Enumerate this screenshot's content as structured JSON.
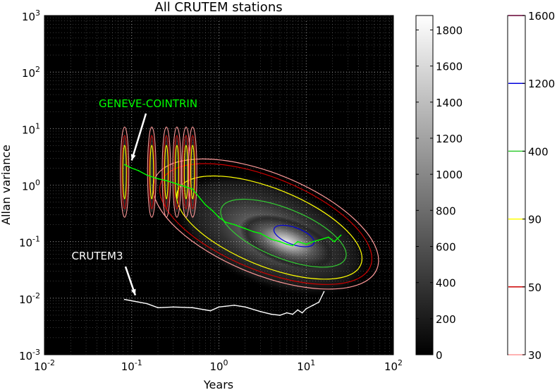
{
  "chart_data": {
    "type": "heatmap",
    "title": "All CRUTEM stations",
    "xlabel": "Years",
    "ylabel": "Allan variance",
    "xscale": "log",
    "yscale": "log",
    "xlim": [
      0.01,
      100
    ],
    "ylim": [
      0.001,
      1000
    ],
    "grid": true,
    "x_ticks": [
      {
        "base": "10",
        "exp": "-2",
        "value": 0.01
      },
      {
        "base": "10",
        "exp": "-1",
        "value": 0.1
      },
      {
        "base": "10",
        "exp": "0",
        "value": 1
      },
      {
        "base": "10",
        "exp": "1",
        "value": 10
      },
      {
        "base": "10",
        "exp": "2",
        "value": 100
      }
    ],
    "y_ticks": [
      {
        "base": "10",
        "exp": "-3",
        "value": 0.001
      },
      {
        "base": "10",
        "exp": "-2",
        "value": 0.01
      },
      {
        "base": "10",
        "exp": "-1",
        "value": 0.1
      },
      {
        "base": "10",
        "exp": "0",
        "value": 1
      },
      {
        "base": "10",
        "exp": "1",
        "value": 10
      },
      {
        "base": "10",
        "exp": "2",
        "value": 100
      },
      {
        "base": "10",
        "exp": "3",
        "value": 1000
      }
    ],
    "density_colorbar": {
      "colormap": "gray",
      "range": [
        0,
        1880
      ],
      "tick_labels": [
        "0",
        "200",
        "400",
        "600",
        "800",
        "1000",
        "1200",
        "1400",
        "1600",
        "1800"
      ]
    },
    "contour_colorbar": {
      "levels": [
        {
          "label": "30",
          "color": "#ff9999"
        },
        {
          "label": "50",
          "color": "#cc0000"
        },
        {
          "label": "90",
          "color": "#ffff00"
        },
        {
          "label": "400",
          "color": "#33cc33"
        },
        {
          "label": "1200",
          "color": "#0000dd"
        },
        {
          "label": "1600",
          "color": "#660033"
        }
      ]
    },
    "series": [
      {
        "name": "GENEVE-COINTRIN",
        "color": "#00ff00",
        "x": [
          0.083,
          0.1,
          0.12,
          0.15,
          0.2,
          0.25,
          0.3,
          0.4,
          0.5,
          0.6,
          0.7,
          0.85,
          1.0,
          1.2,
          1.5,
          2.0,
          2.5,
          3.0,
          4.0,
          5.0,
          6.0,
          7.0,
          8.0,
          10.0,
          12.0,
          15.0,
          18.0,
          21.0,
          25.0
        ],
        "y": [
          2.3,
          2.0,
          1.8,
          1.5,
          1.3,
          1.2,
          1.1,
          0.95,
          0.85,
          0.6,
          0.45,
          0.35,
          0.27,
          0.22,
          0.2,
          0.17,
          0.15,
          0.14,
          0.11,
          0.1,
          0.09,
          0.085,
          0.1,
          0.09,
          0.1,
          0.11,
          0.12,
          0.1,
          0.13
        ]
      },
      {
        "name": "CRUTEM3",
        "color": "#ffffff",
        "x": [
          0.083,
          0.1,
          0.15,
          0.2,
          0.3,
          0.5,
          0.8,
          1.0,
          1.5,
          2.0,
          3.0,
          4.0,
          5.0,
          6.0,
          7.0,
          8.0,
          9.0,
          10.0,
          12.0,
          14.0,
          16.0
        ],
        "y": [
          0.0095,
          0.009,
          0.008,
          0.0068,
          0.007,
          0.0068,
          0.006,
          0.007,
          0.0075,
          0.007,
          0.0058,
          0.0052,
          0.005,
          0.0055,
          0.0052,
          0.0062,
          0.0055,
          0.0065,
          0.0075,
          0.0085,
          0.013
        ]
      }
    ],
    "annotations": [
      {
        "text": "GENEVE-COINTRIN",
        "color": "#00ff00",
        "arrow_to": {
          "x": 0.1,
          "y": 2.3
        }
      },
      {
        "text": "CRUTEM3",
        "color": "#ffffff",
        "arrow_to": {
          "x": 0.11,
          "y": 0.0095
        }
      }
    ]
  }
}
